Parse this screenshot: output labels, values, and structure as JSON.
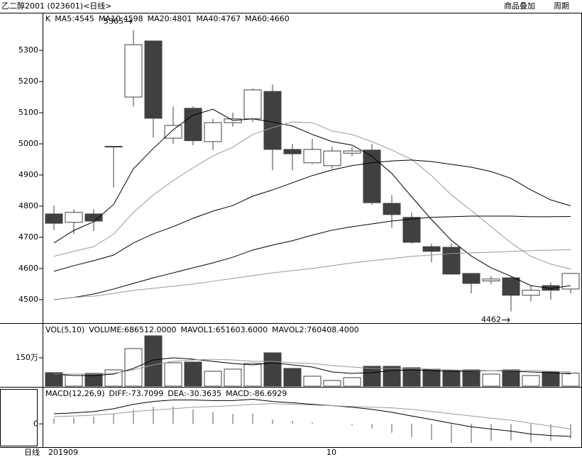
{
  "header": {
    "title": "乙二醇2001 (023601)<日线>",
    "menu": [
      "商品叠加",
      "周期"
    ]
  },
  "footer": {
    "period": "日线"
  },
  "chart_data": [
    {
      "type": "candlestick",
      "label": "K",
      "up_color": "#ffffff",
      "down_color": "#404040",
      "open": [
        4775,
        4748,
        4775,
        4990,
        5150,
        5330,
        5018,
        5114,
        5007,
        5068,
        5080,
        5168,
        4982,
        4939,
        4930,
        4970,
        4980,
        4809,
        4764,
        4670,
        4668,
        4584,
        4560,
        4570,
        4514,
        4545,
        4534
      ],
      "high": [
        4802,
        4790,
        4790,
        4992,
        5365,
        5330,
        5120,
        5120,
        5080,
        5100,
        5178,
        5190,
        5000,
        5015,
        4990,
        4990,
        5000,
        4835,
        4780,
        4680,
        4680,
        4585,
        4575,
        4575,
        4545,
        4555,
        4585
      ],
      "low": [
        4723,
        4710,
        4720,
        4860,
        5120,
        5020,
        5000,
        4995,
        4980,
        5055,
        5070,
        4915,
        4915,
        4935,
        4920,
        4960,
        4805,
        4730,
        4680,
        4620,
        4580,
        4520,
        4550,
        4462,
        4495,
        4500,
        4520
      ],
      "close": [
        4745,
        4780,
        4752,
        4992,
        5318,
        5082,
        5059,
        5010,
        5068,
        5080,
        5173,
        4982,
        4968,
        4982,
        4977,
        4977,
        4811,
        4773,
        4684,
        4655,
        4582,
        4552,
        4566,
        4514,
        4530,
        4530,
        4584
      ],
      "series": [
        {
          "name": "MA5:4545",
          "color": "#000000",
          "values": [
            4682,
            4722,
            4750,
            4805,
            4920,
            4985,
            5045,
            5092,
            5111,
            5075,
            5080,
            5070,
            5057,
            5030,
            5007,
            4996,
            4960,
            4905,
            4830,
            4757,
            4690,
            4640,
            4602,
            4575,
            4545,
            4536,
            4545
          ]
        },
        {
          "name": "MA10:4598",
          "color": "#999999",
          "values": [
            4639,
            4655,
            4670,
            4710,
            4780,
            4836,
            4882,
            4923,
            4961,
            4989,
            5030,
            5052,
            5070,
            5068,
            5041,
            5030,
            5007,
            4980,
            4950,
            4898,
            4836,
            4786,
            4734,
            4682,
            4639,
            4614,
            4598
          ]
        },
        {
          "name": "MA20:4801",
          "color": "#000000",
          "values": [
            4591,
            4609,
            4625,
            4643,
            4682,
            4711,
            4734,
            4761,
            4784,
            4802,
            4832,
            4852,
            4875,
            4898,
            4916,
            4930,
            4939,
            4945,
            4948,
            4943,
            4934,
            4925,
            4911,
            4889,
            4852,
            4820,
            4801
          ]
        },
        {
          "name": "MA40:4767",
          "color": "#000000",
          "values": [
            4500,
            4507,
            4518,
            4534,
            4552,
            4570,
            4586,
            4602,
            4618,
            4636,
            4659,
            4675,
            4689,
            4707,
            4723,
            4734,
            4743,
            4752,
            4759,
            4764,
            4766,
            4768,
            4768,
            4768,
            4766,
            4766,
            4767
          ]
        },
        {
          "name": "MA60:4660",
          "color": "#999999",
          "values": [
            4500,
            4507,
            4511,
            4520,
            4530,
            4536,
            4543,
            4550,
            4559,
            4568,
            4577,
            4586,
            4593,
            4600,
            4609,
            4618,
            4625,
            4632,
            4639,
            4643,
            4648,
            4650,
            4652,
            4655,
            4657,
            4659,
            4660
          ]
        }
      ],
      "annotations": [
        5365,
        4462
      ],
      "ylim": [
        4427,
        5416
      ],
      "yticks": [
        4500,
        4600,
        4700,
        4800,
        4900,
        5000,
        5100,
        5200,
        5300
      ]
    },
    {
      "type": "volume",
      "label": "VOL(5,10)",
      "name": "VOLUME:686512.0000",
      "up_color": "#ffffff",
      "down_color": "#404040",
      "values": [
        712500,
        637500,
        675000,
        862500,
        1987500,
        2662500,
        1237500,
        1275000,
        787500,
        900000,
        1200000,
        1762500,
        937500,
        525000,
        300000,
        450000,
        1050000,
        1050000,
        975000,
        900000,
        825000,
        862500,
        637500,
        862500,
        562500,
        750000,
        686512
      ],
      "series": [
        {
          "name": "MAVOL1:651603.6000",
          "color": "#000000",
          "values": [
            637500,
            562500,
            562500,
            637500,
            937500,
            1387500,
            1500000,
            1425000,
            1312500,
            1200000,
            1125000,
            1237500,
            1125000,
            1012500,
            750000,
            675000,
            712500,
            825000,
            862500,
            825000,
            787500,
            787500,
            825000,
            787500,
            750000,
            712500,
            651604
          ]
        },
        {
          "name": "MAVOL2:760408.4000",
          "color": "#999999",
          "values": [
            637500,
            637500,
            637500,
            675000,
            862500,
            1125000,
            1312500,
            1387500,
            1425000,
            1387500,
            1312500,
            1312500,
            1237500,
            1200000,
            1087500,
            1012500,
            937500,
            937500,
            937500,
            900000,
            862500,
            825000,
            825000,
            825000,
            825000,
            787500,
            760408
          ]
        }
      ],
      "ylim": [
        0,
        3260000
      ],
      "yticks": [
        {
          "value": 1500000,
          "label": "150万"
        }
      ]
    },
    {
      "type": "macd",
      "label": "MACD(12,26,9)",
      "name": "MACD:-86.6929",
      "color": "#555555",
      "categories": [
        "201909",
        null,
        null,
        null,
        null,
        null,
        null,
        null,
        null,
        null,
        null,
        null,
        null,
        null,
        "10",
        null,
        null,
        null,
        null,
        null,
        null,
        null,
        null,
        null,
        null,
        null,
        null
      ],
      "values": [
        34,
        36,
        42,
        60,
        86,
        102,
        104,
        86,
        70,
        60,
        60,
        26,
        18,
        8,
        0,
        -8,
        -26,
        -52,
        -78,
        -94,
        -112,
        -112,
        -100,
        -98,
        -110,
        -100,
        -86.6929
      ],
      "series": [
        {
          "name": "DIFF:-73.7099",
          "color": "#000000",
          "values": [
            60,
            65,
            73,
            90,
            116,
            133,
            142,
            142,
            138,
            138,
            146,
            133,
            125,
            116,
            108,
            99,
            86,
            69,
            47,
            26,
            4,
            -17,
            -30,
            -43,
            -60,
            -69,
            -73.7099
          ]
        },
        {
          "name": "DEA:-30.3635",
          "color": "#999999",
          "values": [
            43,
            47,
            52,
            60,
            73,
            82,
            90,
            99,
            103,
            108,
            116,
            120,
            116,
            112,
            108,
            103,
            99,
            95,
            86,
            73,
            60,
            47,
            34,
            22,
            4,
            -13,
            -30.3635
          ]
        }
      ],
      "ylim": [
        -133,
        211
      ],
      "yticks": [
        0
      ]
    }
  ]
}
